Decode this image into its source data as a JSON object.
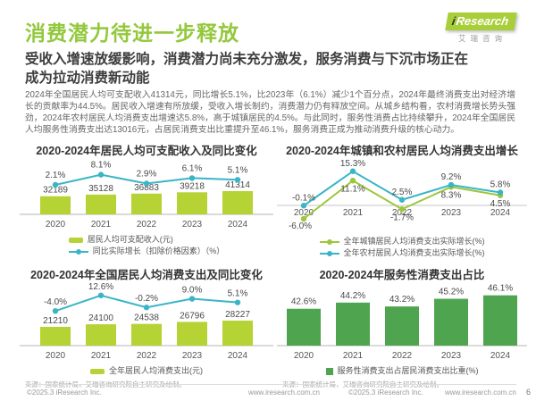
{
  "page": {
    "title": "消费潜力待进一步释放",
    "logo": {
      "brand_i": "i",
      "brand_rest": "Research",
      "subtext": "艾瑞咨询"
    },
    "subtitle": "受收入增速放缓影响，消费潜力尚未充分激发，服务消费与下沉市场正在成为拉动消费新动能",
    "body": "2024年全国居民人均可支配收入41314元，同比增长5.1%，比2023年（6.1%）减少1个百分点，2024年最终消费支出对经济增长的贡献率为44.5%。居民收入增速有所放缓，受收入增长制约，消费潜力仍有释放空间。从城乡结构看，农村消费增长势头强劲，2024年农村居民人均消费支出增速达5.8%，高于城镇居民的4.5%。与此同时，服务性消费占比持续攀升，2024年全国居民人均服务性消费支出达13016元，占居民消费支出比重提升至46.1%，服务消费正成为推动消费升级的核心动力。"
  },
  "colors": {
    "brand_green": "#93C83D",
    "lime_bar": "#B5D334",
    "teal_line": "#3AB5C6",
    "urban_green_line": "#9DC63B",
    "service_green_bar": "#4FA44F"
  },
  "chart_data": [
    {
      "type": "bar+line",
      "title": "2020-2024年居民人均可支配收入及同比变化",
      "categories": [
        "2020",
        "2021",
        "2022",
        "2023",
        "2024"
      ],
      "series": [
        {
          "name": "居民人均可支配收入(元)",
          "kind": "bar",
          "values": [
            32189,
            35128,
            36883,
            39218,
            41314
          ],
          "color": "#B5D334",
          "format": "int"
        },
        {
          "name": "同比实际增长（扣除价格因素）（%）",
          "kind": "line",
          "values": [
            2.1,
            8.1,
            2.9,
            6.1,
            5.1
          ],
          "color": "#3AB5C6",
          "format": "pct1"
        }
      ],
      "legend_position": "bottom"
    },
    {
      "type": "line",
      "title": "2020-2024年城镇和农村居民人均消费支出增长",
      "categories": [
        "2020",
        "2021",
        "2022",
        "2023",
        "2024"
      ],
      "series": [
        {
          "name": "全年城镇居民人均消费支出实际增长(%)",
          "kind": "line",
          "values": [
            -6.0,
            11.1,
            -1.7,
            8.3,
            4.5
          ],
          "color": "#9DC63B",
          "format": "pct1"
        },
        {
          "name": "全年农村居民人均消费支出实际增长(%)",
          "kind": "line",
          "values": [
            -0.1,
            15.3,
            2.5,
            9.2,
            5.8
          ],
          "color": "#3AB5C6",
          "format": "pct1"
        }
      ],
      "legend_position": "bottom"
    },
    {
      "type": "bar+line",
      "title": "2020-2024年全国居民人均消费支出及同比变化",
      "categories": [
        "2020",
        "2021",
        "2022",
        "2023",
        "2024"
      ],
      "series": [
        {
          "name": "全年居民人均消费支出(元)",
          "kind": "bar",
          "values": [
            21210,
            24100,
            24538,
            26796,
            28227
          ],
          "color": "#B5D334",
          "format": "int"
        },
        {
          "name": "同比变化(%)",
          "kind": "line",
          "values": [
            -4.0,
            12.6,
            -0.2,
            9.0,
            5.1
          ],
          "color": "#3AB5C6",
          "format": "pct1",
          "in_legend": false
        }
      ],
      "legend_position": "bottom"
    },
    {
      "type": "bar",
      "title": "2020-2024年服务性消费支出占比",
      "categories": [
        "2020",
        "2021",
        "2022",
        "2023",
        "2024"
      ],
      "series": [
        {
          "name": "服务性消费支出占居民消费支出比重(%)",
          "kind": "bar",
          "values": [
            42.6,
            44.2,
            43.2,
            45.2,
            46.1
          ],
          "color": "#4FA44F",
          "format": "pct1"
        }
      ],
      "legend_position": "bottom"
    }
  ],
  "footer": {
    "source_note": "来源：国家统计局，艾瑞咨询研究院自主研究及绘制。",
    "copyright": "©2025.3 iResearch Inc.",
    "website": "www.iresearch.com.cn",
    "page_number": "6"
  }
}
